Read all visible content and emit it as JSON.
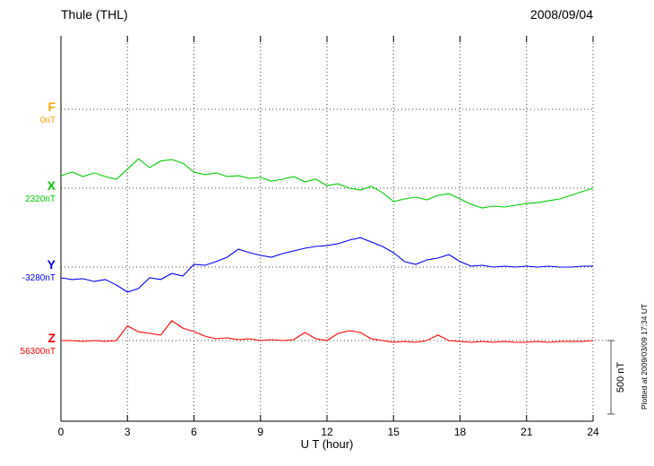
{
  "header": {
    "title": "Thule (THL)",
    "date": "2008/09/04"
  },
  "xaxis": {
    "label": "U T (hour)",
    "min": 0,
    "max": 24,
    "tick_step": 3,
    "ticks": [
      "0",
      "3",
      "6",
      "9",
      "12",
      "15",
      "18",
      "21",
      "24"
    ]
  },
  "scale_bar": {
    "label": "500 nT",
    "value_nT": 500
  },
  "watermark": "Plotted at 2009/03/09 17:34 UT",
  "chart_data": {
    "type": "line",
    "title": "Thule (THL) magnetogram",
    "date": "2008/09/04",
    "xlabel": "U T (hour)",
    "x_range": [
      0,
      24
    ],
    "x_step_hours": 0.5,
    "grid": "dotted vertical lines every 3 hours, dotted horizontal baseline per component",
    "scale_bar_nT": 500,
    "value_units": "nT offset from each component baseline",
    "series": [
      {
        "name": "F",
        "baseline_label": "0nT",
        "baseline_nT": 0,
        "color": "#ffa500",
        "values": []
      },
      {
        "name": "X",
        "baseline_label": "2320nT",
        "baseline_nT": 2320,
        "color": "#00cc00",
        "values": [
          85,
          110,
          79,
          104,
          79,
          61,
          130,
          200,
          140,
          185,
          195,
          170,
          110,
          92,
          104,
          79,
          85,
          67,
          73,
          49,
          61,
          79,
          43,
          61,
          18,
          30,
          0,
          -12,
          12,
          -30,
          -91,
          -73,
          -61,
          -79,
          -49,
          -37,
          -73,
          -110,
          -134,
          -122,
          -128,
          -116,
          -104,
          -98,
          -85,
          -73,
          -49,
          -24,
          0
        ]
      },
      {
        "name": "Y",
        "baseline_label": "-3280nT",
        "baseline_nT": -3280,
        "color": "#0000ff",
        "values": [
          -73,
          -85,
          -79,
          -98,
          -85,
          -122,
          -171,
          -146,
          -73,
          -85,
          -43,
          -61,
          18,
          12,
          37,
          67,
          122,
          98,
          79,
          67,
          92,
          110,
          128,
          140,
          146,
          159,
          183,
          200,
          171,
          140,
          98,
          37,
          18,
          49,
          61,
          85,
          37,
          6,
          12,
          0,
          6,
          0,
          6,
          0,
          6,
          0,
          0,
          6,
          6
        ]
      },
      {
        "name": "Z",
        "baseline_label": "56300nT",
        "baseline_nT": 56300,
        "color": "#ff0000",
        "values": [
          0,
          0,
          -6,
          0,
          -6,
          0,
          100,
          60,
          49,
          37,
          135,
          85,
          61,
          30,
          12,
          18,
          6,
          12,
          0,
          6,
          0,
          6,
          55,
          12,
          0,
          49,
          67,
          55,
          12,
          0,
          -12,
          -6,
          -12,
          0,
          37,
          0,
          -6,
          -12,
          -6,
          -12,
          -6,
          -12,
          -12,
          -6,
          -12,
          -6,
          -6,
          -6,
          0
        ]
      }
    ]
  }
}
